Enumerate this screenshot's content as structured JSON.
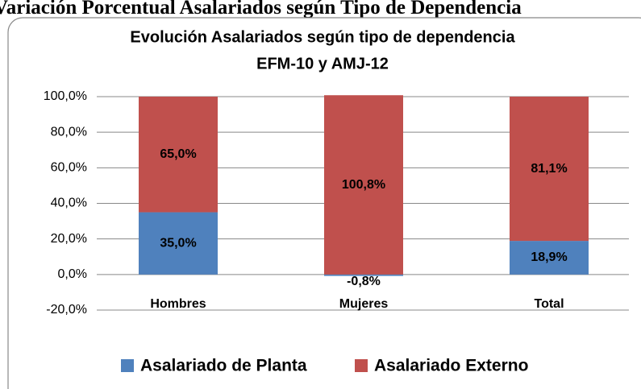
{
  "header": {
    "text": "Variación Porcentual Asalariados según Tipo de Dependencia"
  },
  "chart_data": {
    "type": "stacked_bar",
    "title": [
      "Evolución Asalariados según tipo de dependencia",
      "EFM-10 y AMJ-12"
    ],
    "categories": [
      "Hombres",
      "Mujeres",
      "Total"
    ],
    "series": [
      {
        "name": "Asalariado de Planta",
        "color": "#4f81bd",
        "values": [
          35.0,
          -0.8,
          18.9
        ],
        "value_labels": [
          "35,0%",
          "-0,8%",
          "18,9%"
        ]
      },
      {
        "name": "Asalariado Externo",
        "color": "#c0504d",
        "values": [
          65.0,
          100.8,
          81.1
        ],
        "value_labels": [
          "65,0%",
          "100,8%",
          "81,1%"
        ]
      }
    ],
    "ylim": [
      -20,
      100
    ],
    "yticks": [
      {
        "value": -20,
        "label": "-20,0%"
      },
      {
        "value": 0,
        "label": "0,0%"
      },
      {
        "value": 20,
        "label": "20,0%"
      },
      {
        "value": 40,
        "label": "40,0%"
      },
      {
        "value": 60,
        "label": "60,0%"
      },
      {
        "value": 80,
        "label": "80,0%"
      },
      {
        "value": 100,
        "label": "100,0%"
      }
    ],
    "grid": true,
    "legend": "bottom"
  }
}
